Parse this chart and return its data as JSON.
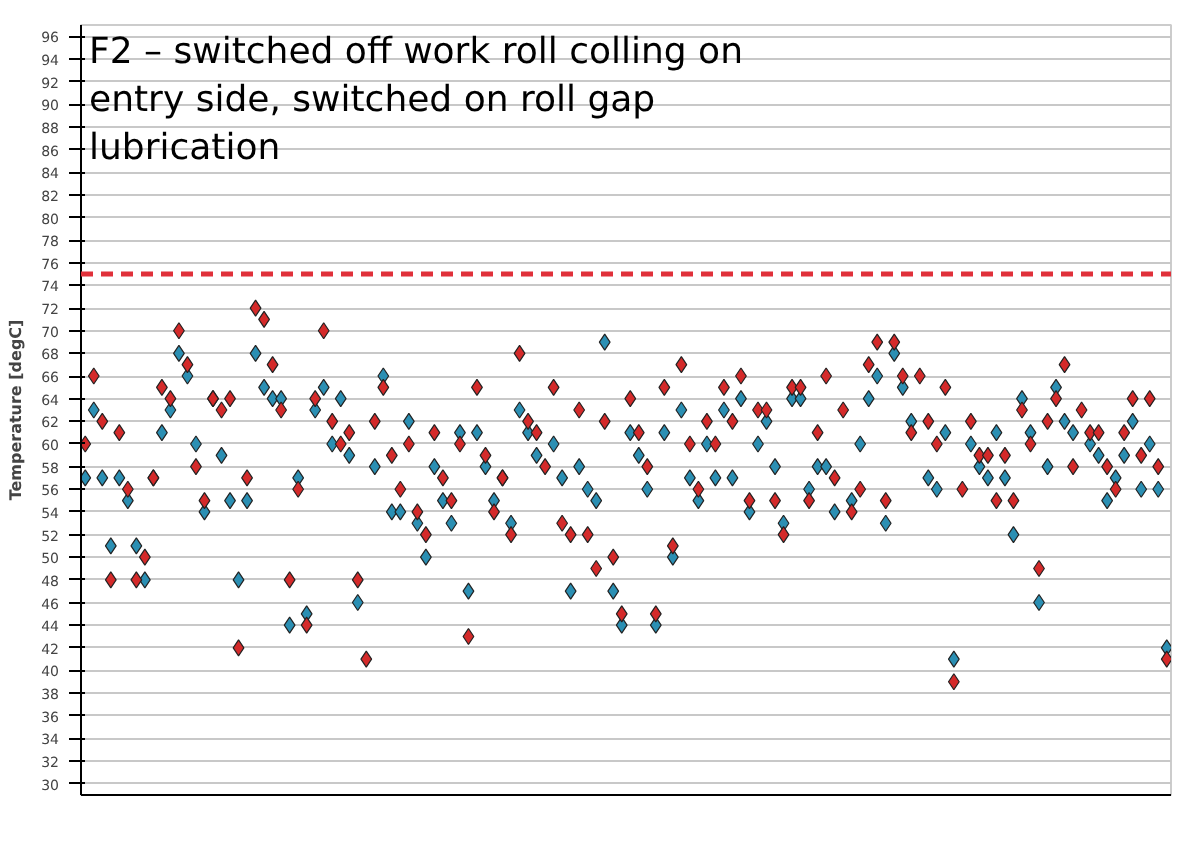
{
  "chart_data": {
    "type": "scatter",
    "title": "F2 – switched off work roll colling on entry side, switched on roll gap lubrication",
    "ylabel": "Temperature [degC]",
    "categories": [
      null,
      null,
      null,
      null,
      null,
      null,
      null,
      null,
      null,
      null,
      null,
      null,
      null,
      null,
      null,
      null,
      null,
      null,
      null,
      null,
      null,
      null,
      null,
      null,
      null,
      null,
      null,
      null,
      null,
      null,
      null,
      null,
      null,
      null,
      null,
      null,
      null,
      null,
      null,
      null,
      null,
      null,
      null,
      null,
      null,
      null,
      null,
      null,
      null,
      null,
      null,
      null,
      null,
      null,
      null,
      null,
      null,
      null,
      null,
      null,
      null,
      null,
      null,
      null,
      null,
      null,
      null,
      null,
      null,
      null,
      null,
      null,
      null,
      null,
      null,
      null,
      null,
      null,
      null,
      null,
      null,
      null,
      null,
      null,
      null,
      null,
      null,
      null,
      null,
      null,
      null,
      null,
      null,
      null,
      null,
      null,
      null,
      null,
      null,
      null,
      null,
      null,
      null,
      null,
      null,
      null,
      null,
      null,
      null,
      null,
      null,
      null,
      null,
      null,
      null,
      null,
      null,
      null,
      null,
      null,
      null,
      null,
      null,
      null,
      null,
      null,
      null,
      null
    ],
    "series": [
      {
        "color": "#2b8fb3",
        "values": [
          57,
          63,
          57,
          51,
          57,
          55,
          51,
          48,
          57,
          61,
          63,
          68,
          66,
          60,
          54,
          64,
          59,
          55,
          48,
          55,
          68,
          65,
          64,
          64,
          44,
          57,
          45,
          63,
          65,
          60,
          64,
          59,
          46,
          null,
          58,
          66,
          54,
          54,
          62,
          53,
          50,
          58,
          55,
          53,
          61,
          47,
          61,
          58,
          55,
          57,
          53,
          63,
          61,
          59,
          null,
          60,
          57,
          47,
          58,
          56,
          55,
          69,
          47,
          44,
          61,
          59,
          56,
          44,
          61,
          50,
          63,
          57,
          55,
          60,
          57,
          63,
          57,
          64,
          54,
          60,
          62,
          58,
          53,
          64,
          64,
          56,
          58,
          58,
          54,
          null,
          55,
          60,
          64,
          66,
          53,
          68,
          65,
          62,
          null,
          57,
          56,
          61,
          41,
          null,
          60,
          58,
          57,
          61,
          57,
          52,
          64,
          61,
          46,
          58,
          65,
          62,
          61,
          null,
          60,
          59,
          55,
          57,
          59,
          62,
          56,
          60,
          56,
          42
        ]
      },
      {
        "color": "#d42a2a",
        "values": [
          60,
          66,
          62,
          48,
          61,
          56,
          48,
          50,
          57,
          65,
          64,
          70,
          67,
          58,
          55,
          64,
          63,
          64,
          42,
          57,
          72,
          71,
          67,
          63,
          48,
          56,
          44,
          64,
          70,
          62,
          60,
          61,
          48,
          41,
          62,
          65,
          59,
          56,
          60,
          54,
          52,
          61,
          57,
          55,
          60,
          43,
          65,
          59,
          54,
          57,
          52,
          68,
          62,
          61,
          58,
          65,
          53,
          52,
          63,
          52,
          49,
          62,
          50,
          45,
          64,
          61,
          58,
          45,
          65,
          51,
          67,
          60,
          56,
          62,
          60,
          65,
          62,
          66,
          55,
          63,
          63,
          55,
          52,
          65,
          65,
          55,
          61,
          66,
          57,
          63,
          54,
          56,
          67,
          69,
          55,
          69,
          66,
          61,
          66,
          62,
          60,
          65,
          39,
          56,
          62,
          59,
          59,
          55,
          59,
          55,
          63,
          60,
          49,
          62,
          64,
          67,
          58,
          63,
          61,
          61,
          58,
          56,
          61,
          64,
          59,
          64,
          58,
          41
        ]
      }
    ],
    "ylim": [
      29,
      97
    ],
    "yticks": [
      30,
      32,
      34,
      36,
      38,
      40,
      42,
      44,
      46,
      48,
      50,
      52,
      54,
      56,
      58,
      60,
      62,
      64,
      66,
      68,
      70,
      72,
      74,
      76,
      78,
      80,
      82,
      84,
      86,
      88,
      90,
      92,
      94,
      96
    ],
    "ref_lines": [
      {
        "axis": "y",
        "value": 75,
        "color": "#e0303a",
        "line_style": "dashed"
      }
    ],
    "grid": "y",
    "marker": "diamond",
    "tick_labels": "y"
  }
}
